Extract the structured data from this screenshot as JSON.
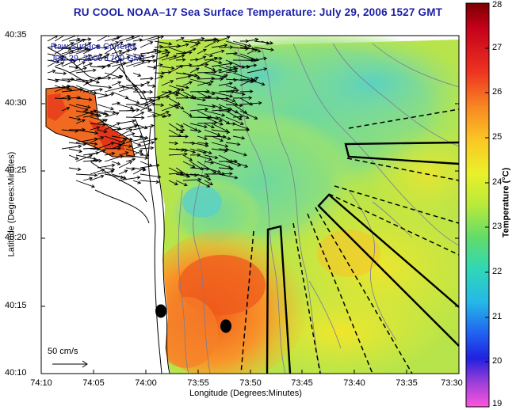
{
  "title": "RU COOL  NOAA–17  Sea Surface Temperature:  July 29, 2006 1527 GMT",
  "legend": {
    "line1": "Raw Surface Currents",
    "line2": "July 29, 2006 1700 GMT"
  },
  "axes": {
    "xlabel": "Longitude (Degrees:Minutes)",
    "ylabel": "Latitude (Degrees:Minutes)",
    "xticks": [
      "74:10",
      "74:05",
      "74:00",
      "73:55",
      "73:50",
      "73:45",
      "73:40",
      "73:35",
      "73:30"
    ],
    "yticks": [
      "40:35",
      "40:30",
      "40:25",
      "40:20",
      "40:15",
      "40:10"
    ]
  },
  "colorbar": {
    "label": "Temperature (°C)",
    "ticks": [
      "28",
      "27",
      "26",
      "25",
      "24",
      "23",
      "22",
      "21",
      "20",
      "19"
    ],
    "min": 19,
    "max": 28
  },
  "scale_vector": {
    "label": "50 cm/s"
  },
  "colors": {
    "title": "#1b1fa6",
    "coastline": "#000000",
    "bathymetry": "#7a7a9a"
  }
}
